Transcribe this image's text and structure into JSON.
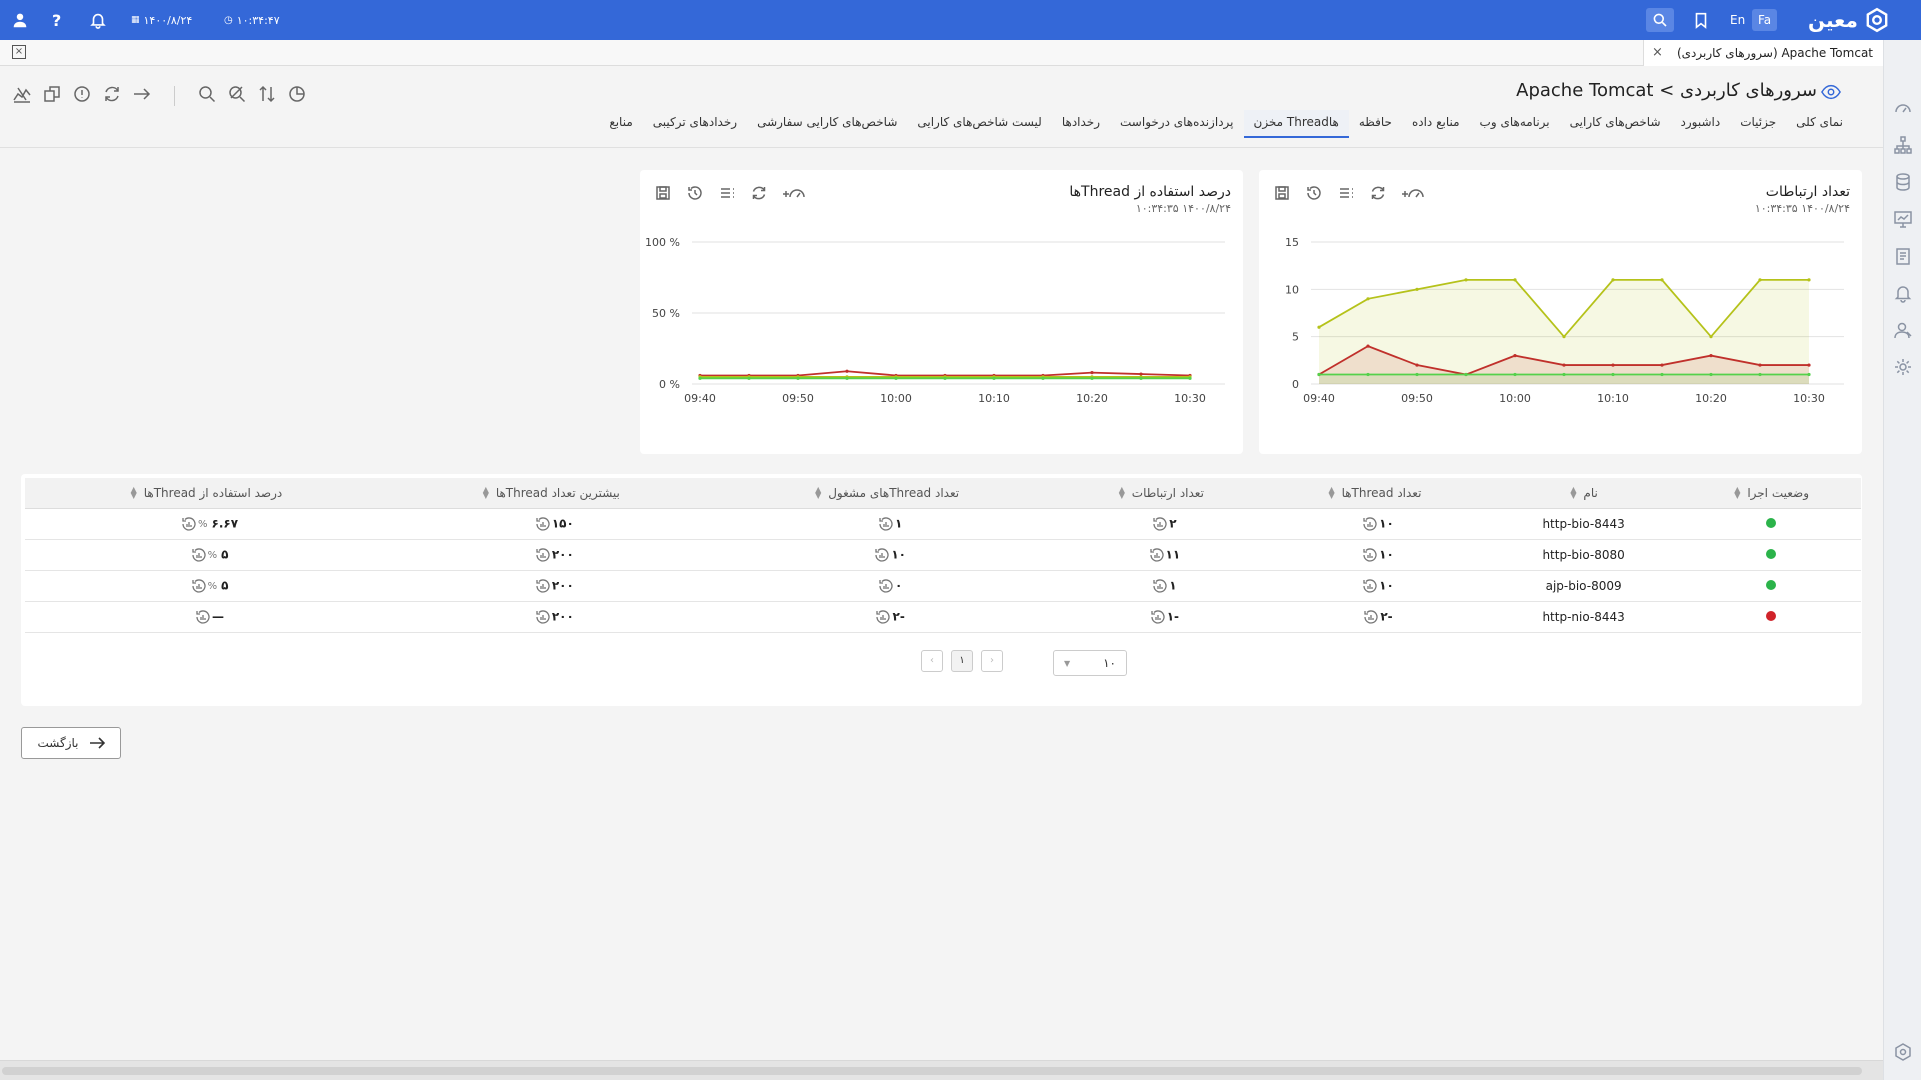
{
  "topbar": {
    "time": "۱۰:۳۴:۴۷",
    "date": "۱۴۰۰/۸/۲۴",
    "lang_en": "En",
    "lang_fa": "Fa",
    "logo_text": "معین"
  },
  "tabstrip": {
    "page_tab": "Apache Tomcat (سرورهای کاربردی)"
  },
  "header": {
    "title": "سرورهای کاربردی > Apache Tomcat",
    "tabs": [
      {
        "label": "نمای کلی",
        "active": false
      },
      {
        "label": "جزئیات",
        "active": false
      },
      {
        "label": "داشبورد",
        "active": false
      },
      {
        "label": "شاخص‌های کارایی",
        "active": false
      },
      {
        "label": "برنامه‌های وب",
        "active": false
      },
      {
        "label": "منابع داده",
        "active": false
      },
      {
        "label": "حافظه",
        "active": false
      },
      {
        "label": "مخزن Threadها",
        "active": true
      },
      {
        "label": "پردازنده‌های درخواست",
        "active": false
      },
      {
        "label": "رخدادها",
        "active": false
      },
      {
        "label": "لیست شاخص‌های کارایی",
        "active": false
      },
      {
        "label": "شاخص‌های کارایی سفارشی",
        "active": false
      },
      {
        "label": "رخدادهای ترکیبی",
        "active": false
      },
      {
        "label": "منابع",
        "active": false
      }
    ]
  },
  "charts": {
    "connections": {
      "title": "تعداد ارتباطات",
      "timestamp": "۱۴۰۰/۸/۲۴   ۱۰:۳۴:۳۵"
    },
    "thread_usage": {
      "title": "درصد استفاده از Threadها",
      "timestamp": "۱۴۰۰/۸/۲۴   ۱۰:۳۴:۳۵"
    }
  },
  "chart_data": [
    {
      "type": "area",
      "title": "تعداد ارتباطات",
      "x": [
        "09:40",
        "09:45",
        "09:50",
        "09:55",
        "10:00",
        "10:05",
        "10:10",
        "10:15",
        "10:20",
        "10:25",
        "10:30"
      ],
      "xticks": [
        "09:40",
        "09:50",
        "10:00",
        "10:10",
        "10:20",
        "10:30"
      ],
      "ylim": [
        0,
        15
      ],
      "yticks": [
        "0",
        "5",
        "10",
        "15"
      ],
      "grid": true,
      "series": [
        {
          "color": "#b5c21a",
          "values": [
            6,
            9,
            10,
            11,
            11,
            5,
            11,
            11,
            5,
            11,
            11
          ]
        },
        {
          "color": "#c0302b",
          "values": [
            1,
            4,
            2,
            1,
            3,
            2,
            2,
            2,
            3,
            2,
            2
          ]
        },
        {
          "color": "#55d14b",
          "values": [
            1,
            1,
            1,
            1,
            1,
            1,
            1,
            1,
            1,
            1,
            1
          ]
        }
      ]
    },
    {
      "type": "line",
      "title": "درصد استفاده از Threadها",
      "x": [
        "09:40",
        "09:45",
        "09:50",
        "09:55",
        "10:00",
        "10:05",
        "10:10",
        "10:15",
        "10:20",
        "10:25",
        "10:30"
      ],
      "xticks": [
        "09:40",
        "09:50",
        "10:00",
        "10:10",
        "10:20",
        "10:30"
      ],
      "ylim": [
        0,
        100
      ],
      "yticks": [
        "0 %",
        "50 %",
        "100 %"
      ],
      "grid": true,
      "series": [
        {
          "color": "#c0302b",
          "values": [
            6,
            6,
            6,
            9,
            6,
            6,
            6,
            6,
            8,
            7,
            6
          ]
        },
        {
          "color": "#b5c21a",
          "values": [
            5,
            5,
            5,
            5,
            5,
            5,
            5,
            5,
            5,
            5,
            5
          ]
        },
        {
          "color": "#55d14b",
          "values": [
            4,
            4,
            4,
            4,
            4,
            4,
            4,
            4,
            4,
            4,
            4
          ]
        }
      ]
    }
  ],
  "table": {
    "headers": [
      "وضعیت اجرا",
      "نام",
      "تعداد Threadها",
      "تعداد ارتباطات",
      "تعداد Threadهای مشغول",
      "بیشترین تعداد Threadها",
      "درصد استفاده از Threadها"
    ],
    "rows": [
      {
        "status": "#2bb34a",
        "name": "http-bio-8443",
        "threads": "۱۰",
        "connections": "۲",
        "busy": "۱",
        "max": "۱۵۰",
        "usage": "۶.۶۷",
        "usage_unit": "%"
      },
      {
        "status": "#2bb34a",
        "name": "http-bio-8080",
        "threads": "۱۰",
        "connections": "۱۱",
        "busy": "۱۰",
        "max": "۲۰۰",
        "usage": "۵",
        "usage_unit": "%"
      },
      {
        "status": "#2bb34a",
        "name": "ajp-bio-8009",
        "threads": "۱۰",
        "connections": "۱",
        "busy": "۰",
        "max": "۲۰۰",
        "usage": "۵",
        "usage_unit": "%"
      },
      {
        "status": "#d0232a",
        "name": "http-nio-8443",
        "threads": "-۲",
        "connections": "-۱",
        "busy": "-۲",
        "max": "۲۰۰",
        "usage": "—",
        "usage_unit": ""
      }
    ]
  },
  "pager": {
    "current": "۱",
    "page_size": "۱۰"
  },
  "back_label": "بازگشت"
}
